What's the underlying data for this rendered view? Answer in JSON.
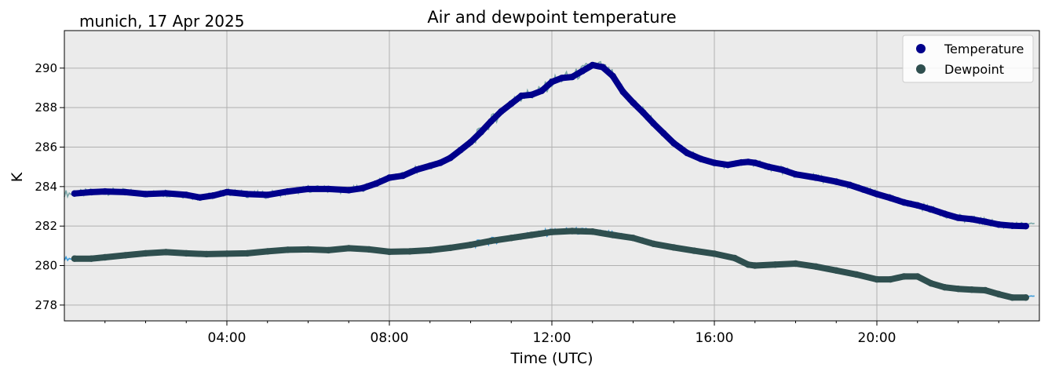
{
  "chart_data": {
    "type": "line",
    "title": "Air and dewpoint temperature",
    "subtitle": "munich, 17 Apr 2025",
    "xlabel": "Time (UTC)",
    "ylabel": "K",
    "xlim": [
      "00:00",
      "24:00"
    ],
    "ylim": [
      277.2,
      291.9
    ],
    "x_ticks": [
      "04:00",
      "08:00",
      "12:00",
      "16:00",
      "20:00"
    ],
    "y_ticks": [
      278,
      280,
      282,
      284,
      286,
      288,
      290
    ],
    "grid": true,
    "legend_position": "top-right",
    "legend": [
      {
        "label": "Temperature",
        "color": "#00008b"
      },
      {
        "label": "Dewpoint",
        "color": "#2f4f4f"
      }
    ],
    "series": [
      {
        "name": "Temperature",
        "color": "#00008b",
        "raw_color": "#7aa6a8",
        "x": [
          "00:15",
          "00:40",
          "01:00",
          "01:30",
          "02:00",
          "02:30",
          "03:00",
          "03:20",
          "03:40",
          "04:00",
          "04:30",
          "05:00",
          "05:30",
          "06:00",
          "06:30",
          "07:00",
          "07:20",
          "07:40",
          "08:00",
          "08:20",
          "08:40",
          "09:00",
          "09:15",
          "09:30",
          "09:45",
          "10:00",
          "10:15",
          "10:30",
          "10:45",
          "11:00",
          "11:15",
          "11:30",
          "11:45",
          "12:00",
          "12:15",
          "12:30",
          "12:45",
          "13:00",
          "13:15",
          "13:30",
          "13:45",
          "14:00",
          "14:15",
          "14:30",
          "14:45",
          "15:00",
          "15:20",
          "15:40",
          "16:00",
          "16:20",
          "16:40",
          "16:50",
          "17:00",
          "17:20",
          "17:40",
          "18:00",
          "18:30",
          "19:00",
          "19:20",
          "19:40",
          "20:00",
          "20:20",
          "20:40",
          "21:00",
          "21:20",
          "21:40",
          "22:00",
          "22:20",
          "22:40",
          "23:00",
          "23:20",
          "23:40"
        ],
        "values": [
          283.65,
          283.72,
          283.75,
          283.72,
          283.62,
          283.66,
          283.58,
          283.45,
          283.55,
          283.72,
          283.62,
          283.58,
          283.75,
          283.88,
          283.88,
          283.82,
          283.92,
          284.15,
          284.45,
          284.55,
          284.85,
          285.05,
          285.2,
          285.45,
          285.85,
          286.25,
          286.75,
          287.3,
          287.8,
          288.2,
          288.6,
          288.65,
          288.85,
          289.3,
          289.5,
          289.55,
          289.85,
          290.15,
          290.05,
          289.6,
          288.8,
          288.25,
          287.75,
          287.2,
          286.7,
          286.2,
          285.7,
          285.4,
          285.2,
          285.1,
          285.22,
          285.25,
          285.2,
          285.0,
          284.85,
          284.62,
          284.45,
          284.25,
          284.08,
          283.85,
          283.62,
          283.42,
          283.2,
          283.05,
          282.85,
          282.62,
          282.42,
          282.35,
          282.22,
          282.08,
          282.02,
          282.0
        ]
      },
      {
        "name": "Dewpoint",
        "color": "#2f4f4f",
        "raw_color": "#3a9ad9",
        "x": [
          "00:15",
          "00:40",
          "01:00",
          "01:30",
          "02:00",
          "02:30",
          "03:00",
          "03:30",
          "04:00",
          "04:30",
          "05:00",
          "05:30",
          "06:00",
          "06:30",
          "07:00",
          "07:30",
          "08:00",
          "08:30",
          "09:00",
          "09:30",
          "10:00",
          "10:30",
          "11:00",
          "11:30",
          "12:00",
          "12:30",
          "13:00",
          "13:30",
          "14:00",
          "14:30",
          "15:00",
          "15:30",
          "16:00",
          "16:30",
          "16:50",
          "17:00",
          "17:30",
          "18:00",
          "18:30",
          "19:00",
          "19:30",
          "20:00",
          "20:20",
          "20:40",
          "21:00",
          "21:20",
          "21:40",
          "22:00",
          "22:20",
          "22:40",
          "23:00",
          "23:20",
          "23:40"
        ],
        "values": [
          280.35,
          280.35,
          280.42,
          280.52,
          280.62,
          280.68,
          280.62,
          280.58,
          280.6,
          280.62,
          280.72,
          280.8,
          280.82,
          280.78,
          280.88,
          280.82,
          280.7,
          280.72,
          280.78,
          280.9,
          281.05,
          281.25,
          281.4,
          281.55,
          281.7,
          281.75,
          281.72,
          281.55,
          281.4,
          281.1,
          280.92,
          280.75,
          280.6,
          280.38,
          280.05,
          280.0,
          280.05,
          280.1,
          279.95,
          279.75,
          279.55,
          279.3,
          279.3,
          279.45,
          279.45,
          279.1,
          278.9,
          278.82,
          278.78,
          278.75,
          278.55,
          278.38,
          278.38
        ]
      }
    ]
  }
}
